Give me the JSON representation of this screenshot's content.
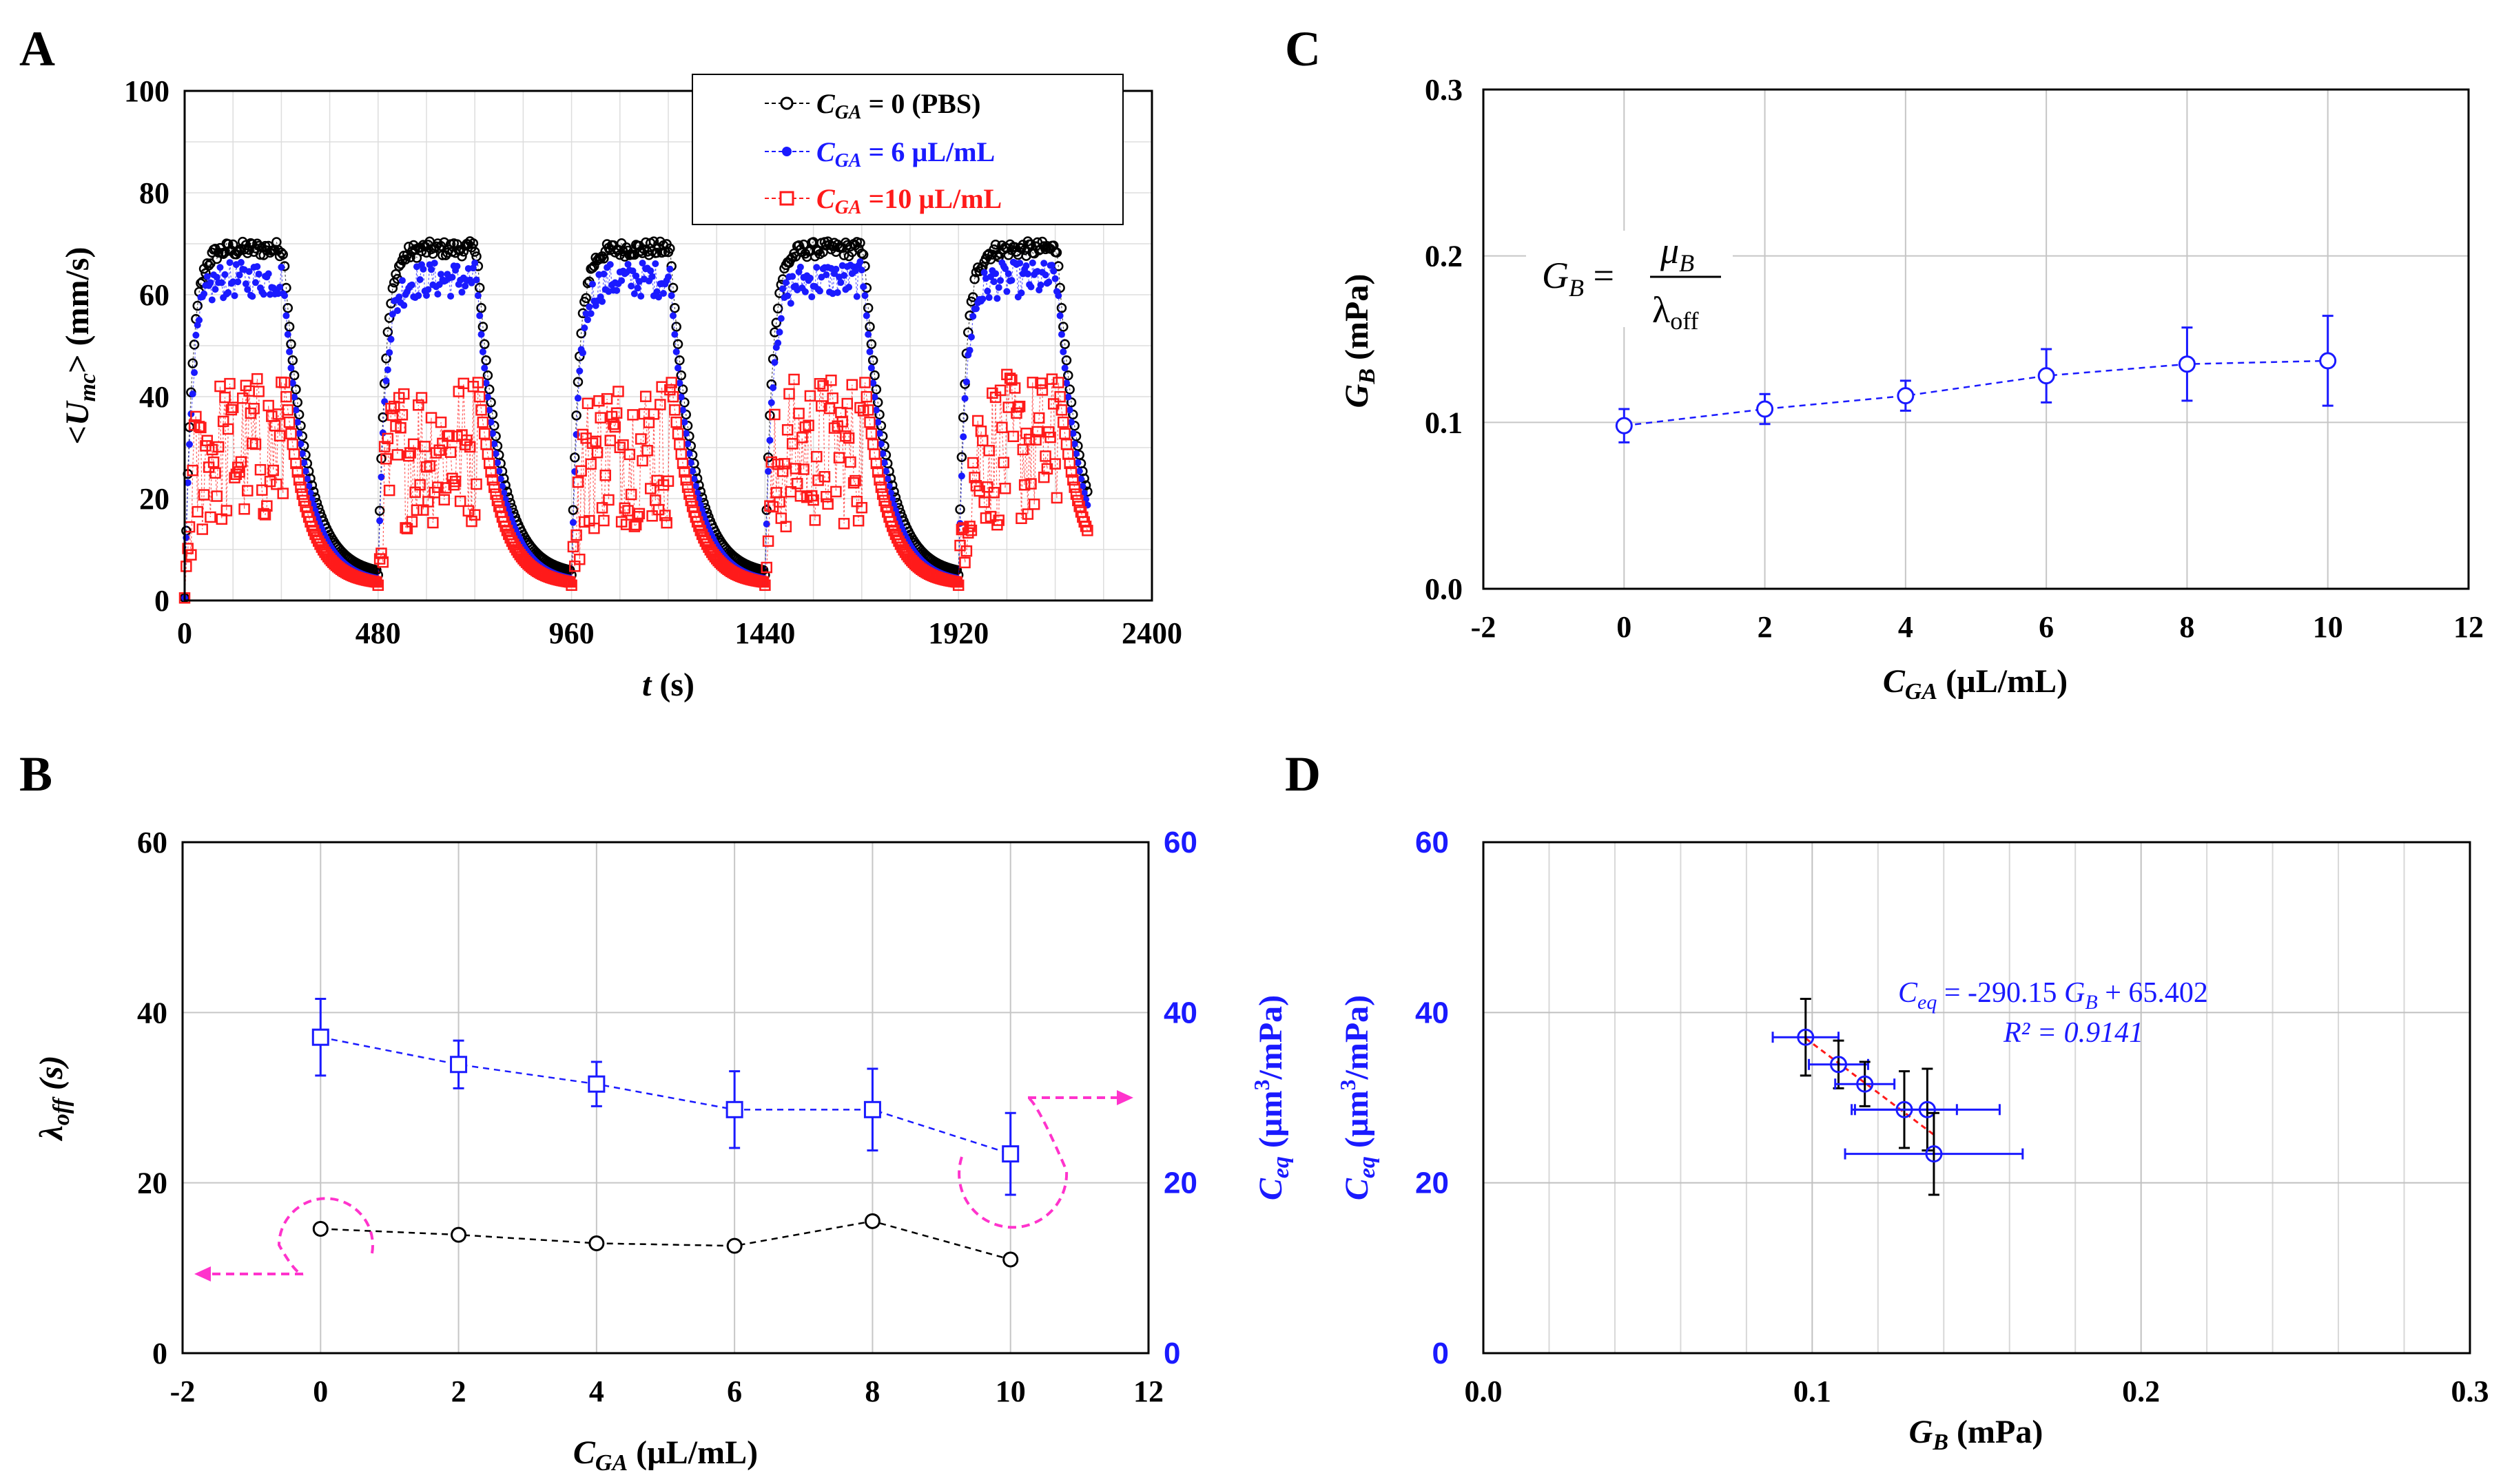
{
  "colors": {
    "black": "#000000",
    "blue": "#1a1aff",
    "red": "#ff1a1a",
    "magenta": "#ff33cc",
    "grid": "#c0c0c0"
  },
  "chart_data": [
    {
      "panel": "A",
      "type": "scatter",
      "title": "",
      "xlabel": "t (s)",
      "ylabel": "<U_mc> (mm/s)",
      "xlim": [
        0,
        2400
      ],
      "ylim": [
        0,
        100
      ],
      "xticks": [
        "0",
        "480",
        "960",
        "1440",
        "1920",
        "2400"
      ],
      "yticks": [
        "0",
        "20",
        "40",
        "60",
        "80",
        "100"
      ],
      "cycles": [
        0,
        480,
        960,
        1440,
        1920
      ],
      "on_duration": 245,
      "end_time": 2240,
      "legend": [
        {
          "label": "C_GA = 0 (PBS)",
          "sub": "GA",
          "value_text": " = 0 (PBS)"
        },
        {
          "label": "C_GA = 6 µL/mL",
          "sub": "GA",
          "value_text": " = 6 µL/mL"
        },
        {
          "label": "C_GA =10 µL/mL",
          "sub": "GA",
          "value_text": " =10 µL/mL"
        }
      ],
      "series": [
        {
          "name": "C_GA = 0 (PBS)",
          "plateau": 69,
          "decay_floor": 5,
          "noise": 1.5,
          "marker": "circle"
        },
        {
          "name": "C_GA = 6 µL/mL",
          "plateau": 63,
          "decay_floor": 3.5,
          "noise": 3.5,
          "marker": "dot"
        },
        {
          "name": "C_GA = 10 µL/mL",
          "plateau": 28,
          "decay_floor": 3,
          "noise": 15,
          "marker": "square"
        }
      ]
    },
    {
      "panel": "B",
      "type": "line",
      "xlabel": "C_GA (µL/mL)",
      "ylabel_left": "λoff (s)",
      "ylabel_right": "Ceq (µm3/mPa)",
      "xlim": [
        -2,
        12
      ],
      "ylim": [
        0,
        60
      ],
      "xticks": [
        "-2",
        "0",
        "2",
        "4",
        "6",
        "8",
        "10",
        "12"
      ],
      "yticks_left": [
        "0",
        "20",
        "40",
        "60"
      ],
      "yticks_right": [
        "0",
        "20",
        "40",
        "60"
      ],
      "x": [
        0,
        2,
        4,
        6,
        8,
        10
      ],
      "series": [
        {
          "name": "lambda_off",
          "axis": "left",
          "values": [
            14.6,
            13.9,
            12.9,
            12.6,
            15.5,
            11.0
          ]
        },
        {
          "name": "C_eq",
          "axis": "right",
          "values": [
            37.1,
            33.9,
            31.6,
            28.6,
            28.6,
            23.4
          ],
          "err": [
            4.5,
            2.8,
            2.6,
            4.5,
            4.8,
            4.8
          ]
        }
      ]
    },
    {
      "panel": "C",
      "type": "line",
      "xlabel": "C_GA (µL/mL)",
      "ylabel": "G_B (mPa)",
      "xlim": [
        -2,
        12
      ],
      "ylim": [
        0,
        0.3
      ],
      "xticks": [
        "-2",
        "0",
        "2",
        "4",
        "6",
        "8",
        "10",
        "12"
      ],
      "yticks": [
        "0.0",
        "0.1",
        "0.2",
        "0.3"
      ],
      "x": [
        0,
        2,
        4,
        6,
        8,
        10
      ],
      "values": [
        0.098,
        0.108,
        0.116,
        0.128,
        0.135,
        0.137
      ],
      "err": [
        0.01,
        0.009,
        0.009,
        0.016,
        0.022,
        0.027
      ],
      "annotation": {
        "lhs": "G",
        "lhs_sub": "B",
        "num": "μ",
        "num_sub": "B",
        "den": "λ",
        "den_sub": "off"
      }
    },
    {
      "panel": "D",
      "type": "scatter",
      "xlabel": "G_B (mPa)",
      "ylabel": "Ceq (µm3/mPa)",
      "xlim": [
        0,
        0.3
      ],
      "ylim": [
        0,
        60
      ],
      "xticks": [
        "0.0",
        "0.1",
        "0.2",
        "0.3"
      ],
      "yticks": [
        "0",
        "20",
        "40",
        "60"
      ],
      "x": [
        0.098,
        0.108,
        0.116,
        0.128,
        0.135,
        0.137
      ],
      "y": [
        37.1,
        33.9,
        31.6,
        28.6,
        28.6,
        23.4
      ],
      "xerr": [
        0.01,
        0.009,
        0.009,
        0.016,
        0.022,
        0.027
      ],
      "yerr": [
        4.5,
        2.8,
        2.6,
        4.5,
        4.8,
        4.8
      ],
      "fit": {
        "slope": -290.15,
        "intercept": 65.402,
        "x_range": [
          0.098,
          0.137
        ]
      },
      "equation": {
        "lhs": "C",
        "lhs_sub": "eq",
        "rest": " = -290.15 ",
        "var": "G",
        "var_sub": "B",
        "tail": " + 65.402"
      },
      "r2": {
        "label": "R² = 0.9141"
      }
    }
  ]
}
